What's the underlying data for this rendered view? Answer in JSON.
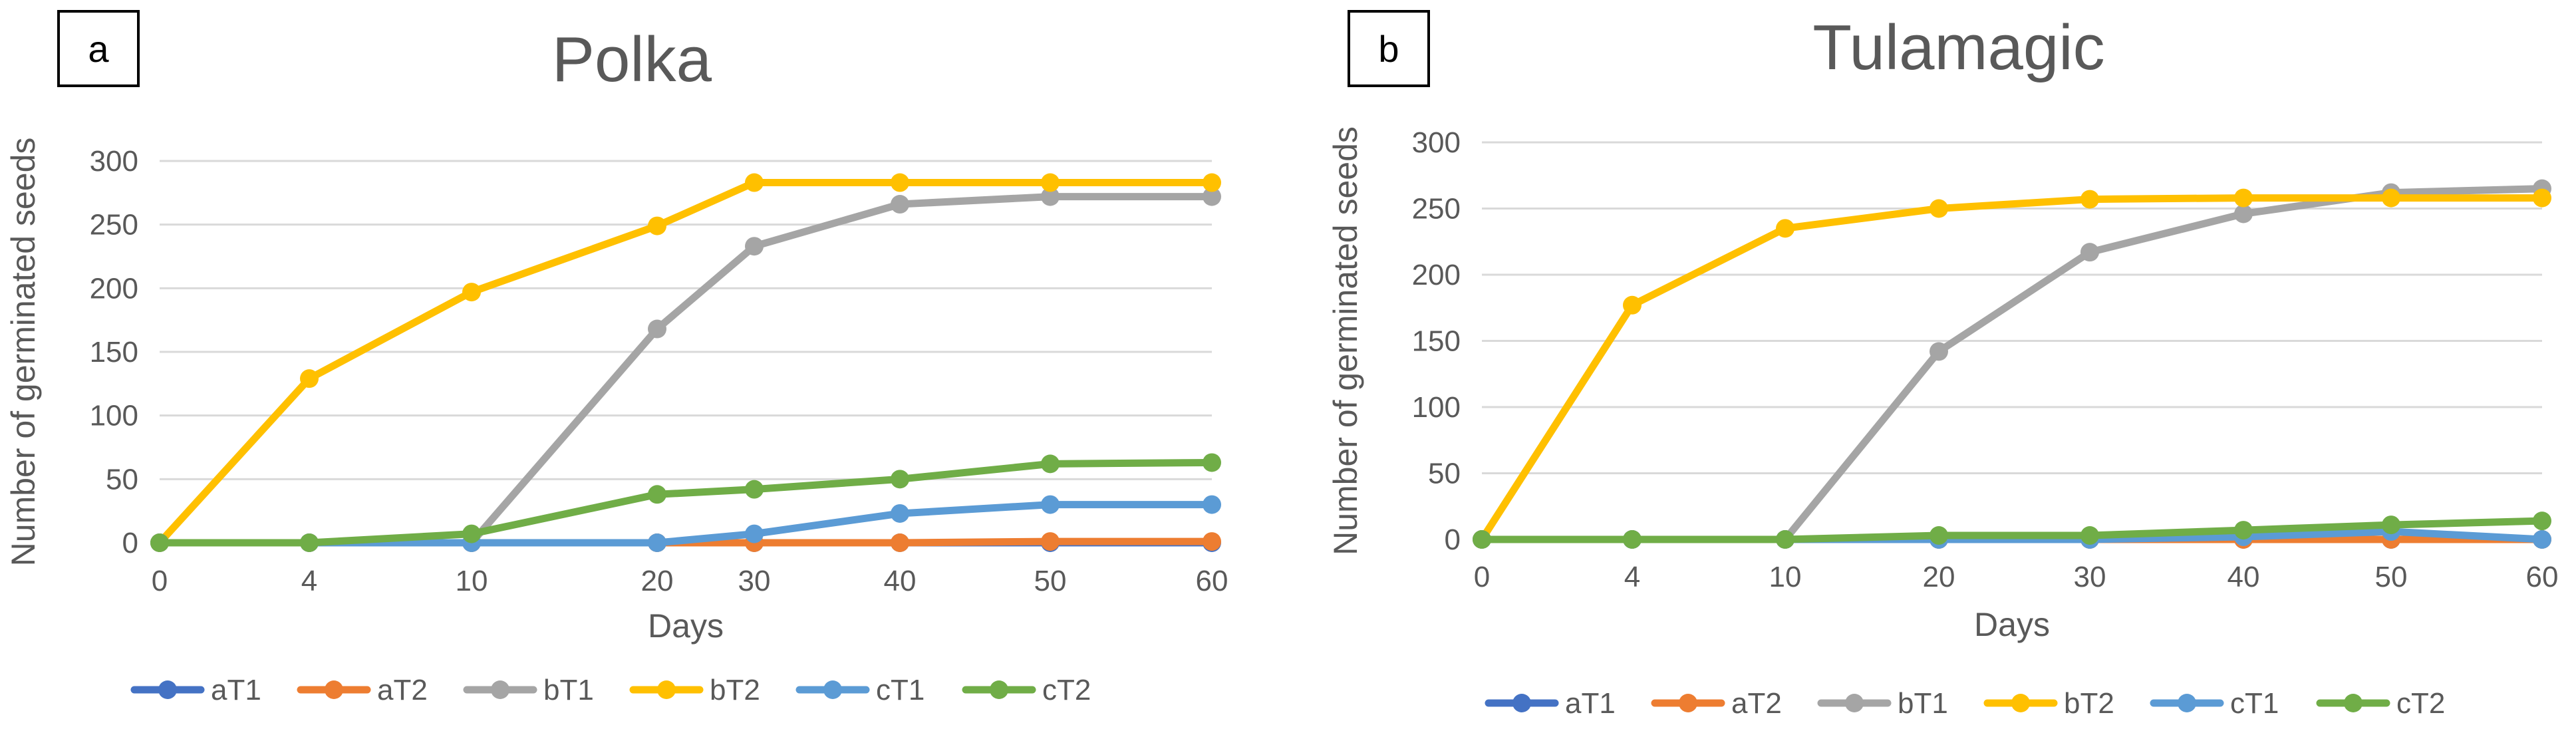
{
  "chart_data": [
    {
      "type": "line",
      "panel_label": "a",
      "title": "Polka",
      "xlabel": "Days",
      "ylabel": "Number of germinated seeds",
      "categories": [
        "0",
        "4",
        "10",
        "20",
        "30",
        "40",
        "50",
        "60"
      ],
      "ylim": [
        0,
        300
      ],
      "yticks": [
        "0",
        "50",
        "100",
        "150",
        "200",
        "250",
        "300"
      ],
      "grid": true,
      "legend_position": "bottom",
      "series": [
        {
          "name": "aT1",
          "color": "#4472C4",
          "values": [
            0,
            0,
            0,
            0,
            0,
            0,
            0,
            0
          ]
        },
        {
          "name": "aT2",
          "color": "#ED7D31",
          "values": [
            0,
            0,
            0,
            0,
            0,
            0,
            1,
            1
          ]
        },
        {
          "name": "bT1",
          "color": "#A5A5A5",
          "values": [
            0,
            0,
            0,
            168,
            233,
            266,
            272,
            272
          ]
        },
        {
          "name": "bT2",
          "color": "#FFC000",
          "values": [
            0,
            129,
            197,
            249,
            283,
            283,
            283,
            283
          ]
        },
        {
          "name": "cT1",
          "color": "#5B9BD5",
          "values": [
            0,
            0,
            0,
            0,
            7,
            23,
            30,
            30
          ]
        },
        {
          "name": "cT2",
          "color": "#70AD47",
          "values": [
            0,
            0,
            7,
            38,
            42,
            50,
            62,
            63
          ]
        }
      ]
    },
    {
      "type": "line",
      "panel_label": "b",
      "title": "Tulamagic",
      "xlabel": "Days",
      "ylabel": "Number of germinated seeds",
      "categories": [
        "0",
        "4",
        "10",
        "20",
        "30",
        "40",
        "50",
        "60"
      ],
      "ylim": [
        0,
        300
      ],
      "yticks": [
        "0",
        "50",
        "100",
        "150",
        "200",
        "250",
        "300"
      ],
      "grid": true,
      "legend_position": "bottom",
      "series": [
        {
          "name": "aT1",
          "color": "#4472C4",
          "values": [
            0,
            0,
            0,
            0,
            0,
            0,
            0,
            0
          ]
        },
        {
          "name": "aT2",
          "color": "#ED7D31",
          "values": [
            0,
            0,
            0,
            0,
            0,
            0,
            0,
            0
          ]
        },
        {
          "name": "bT1",
          "color": "#A5A5A5",
          "values": [
            0,
            0,
            0,
            142,
            217,
            246,
            262,
            265
          ]
        },
        {
          "name": "bT2",
          "color": "#FFC000",
          "values": [
            0,
            177,
            235,
            250,
            257,
            258,
            258,
            258
          ]
        },
        {
          "name": "cT1",
          "color": "#5B9BD5",
          "values": [
            0,
            0,
            0,
            0,
            0,
            2,
            6,
            0
          ]
        },
        {
          "name": "cT2",
          "color": "#70AD47",
          "values": [
            0,
            0,
            0,
            3,
            3,
            7,
            11,
            14
          ]
        }
      ]
    }
  ]
}
